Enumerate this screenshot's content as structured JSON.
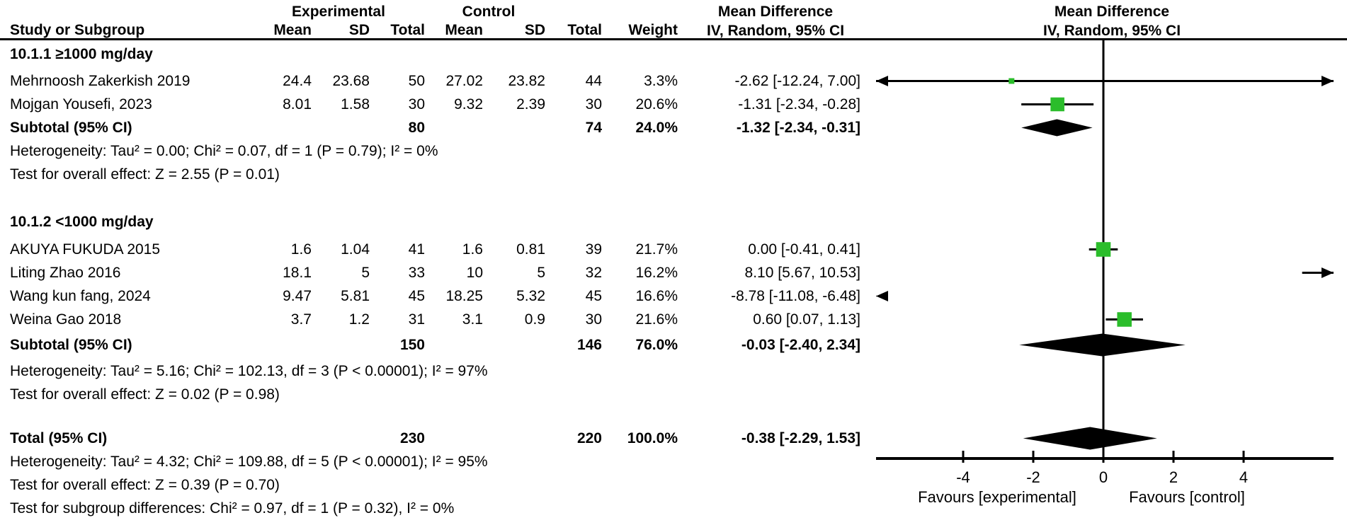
{
  "columns": {
    "study": "Study or Subgroup",
    "mean": "Mean",
    "sd": "SD",
    "total": "Total",
    "weight": "Weight"
  },
  "groups": {
    "experimental": "Experimental",
    "control": "Control"
  },
  "effect_col": {
    "title": "Mean Difference",
    "subtitle": "IV, Random, 95% CI"
  },
  "plot_col": {
    "title": "Mean Difference",
    "subtitle": "IV, Random, 95% CI"
  },
  "sections": [
    {
      "heading": "10.1.1 ≥1000 mg/day",
      "studies": [
        {
          "name": "Mehrnoosh Zakerkish 2019",
          "mean_e": "24.4",
          "sd_e": "23.68",
          "total_e": "50",
          "mean_c": "27.02",
          "sd_c": "23.82",
          "total_c": "44",
          "weight": "3.3%",
          "ci": "-2.62 [-12.24, 7.00]"
        },
        {
          "name": "Mojgan Yousefi, 2023",
          "mean_e": "8.01",
          "sd_e": "1.58",
          "total_e": "30",
          "mean_c": "9.32",
          "sd_c": "2.39",
          "total_c": "30",
          "weight": "20.6%",
          "ci": "-1.31 [-2.34, -0.28]"
        }
      ],
      "subtotal": {
        "label": "Subtotal (95% CI)",
        "total_e": "80",
        "total_c": "74",
        "weight": "24.0%",
        "ci": "-1.32 [-2.34, -0.31]"
      },
      "heterogeneity": "Heterogeneity: Tau² = 0.00; Chi² = 0.07, df = 1 (P = 0.79); I² = 0%",
      "overall_effect": "Test for overall effect: Z = 2.55 (P = 0.01)"
    },
    {
      "heading": "10.1.2 <1000 mg/day",
      "studies": [
        {
          "name": "AKUYA FUKUDA 2015",
          "mean_e": "1.6",
          "sd_e": "1.04",
          "total_e": "41",
          "mean_c": "1.6",
          "sd_c": "0.81",
          "total_c": "39",
          "weight": "21.7%",
          "ci": "0.00 [-0.41, 0.41]"
        },
        {
          "name": "Liting Zhao 2016",
          "mean_e": "18.1",
          "sd_e": "5",
          "total_e": "33",
          "mean_c": "10",
          "sd_c": "5",
          "total_c": "32",
          "weight": "16.2%",
          "ci": "8.10 [5.67, 10.53]"
        },
        {
          "name": "Wang kun fang, 2024",
          "mean_e": "9.47",
          "sd_e": "5.81",
          "total_e": "45",
          "mean_c": "18.25",
          "sd_c": "5.32",
          "total_c": "45",
          "weight": "16.6%",
          "ci": "-8.78 [-11.08, -6.48]"
        },
        {
          "name": "Weina Gao 2018",
          "mean_e": "3.7",
          "sd_e": "1.2",
          "total_e": "31",
          "mean_c": "3.1",
          "sd_c": "0.9",
          "total_c": "30",
          "weight": "21.6%",
          "ci": "0.60 [0.07, 1.13]"
        }
      ],
      "subtotal": {
        "label": "Subtotal (95% CI)",
        "total_e": "150",
        "total_c": "146",
        "weight": "76.0%",
        "ci": "-0.03 [-2.40, 2.34]"
      },
      "heterogeneity": "Heterogeneity: Tau² = 5.16; Chi² = 102.13, df = 3 (P < 0.00001); I² = 97%",
      "overall_effect": "Test for overall effect: Z = 0.02 (P = 0.98)"
    }
  ],
  "total": {
    "label": "Total (95% CI)",
    "total_e": "230",
    "total_c": "220",
    "weight": "100.0%",
    "ci": "-0.38 [-2.29, 1.53]"
  },
  "total_heterogeneity": "Heterogeneity: Tau² = 4.32; Chi² = 109.88, df = 5 (P < 0.00001); I² = 95%",
  "total_overall_effect": "Test for overall effect: Z = 0.39 (P = 0.70)",
  "subgroup_differences": "Test for subgroup differences: Chi² = 0.97, df = 1 (P = 0.32), I² = 0%",
  "axis": {
    "left_label": "Favours [experimental]",
    "right_label": "Favours [control]"
  },
  "colors": {
    "marker_green": "#2bbd2b",
    "line": "#000000"
  },
  "chart_data": {
    "type": "forest",
    "effect_measure": "Mean Difference, IV, Random, 95% CI",
    "axis": {
      "ticks": [
        -4,
        -2,
        0,
        2,
        4
      ],
      "range": [
        -6.49,
        6.57
      ],
      "left_label": "Favours [experimental]",
      "right_label": "Favours [control]"
    },
    "studies": [
      {
        "name": "Mehrnoosh Zakerkish 2019",
        "effect": -2.62,
        "lo": -12.24,
        "hi": 7.0,
        "weight_pct": 3.3
      },
      {
        "name": "Mojgan Yousefi, 2023",
        "effect": -1.31,
        "lo": -2.34,
        "hi": -0.28,
        "weight_pct": 20.6
      },
      {
        "name": "AKUYA FUKUDA 2015",
        "effect": 0.0,
        "lo": -0.41,
        "hi": 0.41,
        "weight_pct": 21.7
      },
      {
        "name": "Liting Zhao 2016",
        "effect": 8.1,
        "lo": 5.67,
        "hi": 10.53,
        "weight_pct": 16.2
      },
      {
        "name": "Wang kun fang, 2024",
        "effect": -8.78,
        "lo": -11.08,
        "hi": -6.48,
        "weight_pct": 16.6
      },
      {
        "name": "Weina Gao 2018",
        "effect": 0.6,
        "lo": 0.07,
        "hi": 1.13,
        "weight_pct": 21.6
      }
    ],
    "diamonds": [
      {
        "name": "Subtotal ≥1000 mg/day",
        "effect": -1.32,
        "lo": -2.34,
        "hi": -0.31
      },
      {
        "name": "Subtotal <1000 mg/day",
        "effect": -0.03,
        "lo": -2.4,
        "hi": 2.34
      },
      {
        "name": "Total",
        "effect": -0.38,
        "lo": -2.29,
        "hi": 1.53
      }
    ]
  }
}
